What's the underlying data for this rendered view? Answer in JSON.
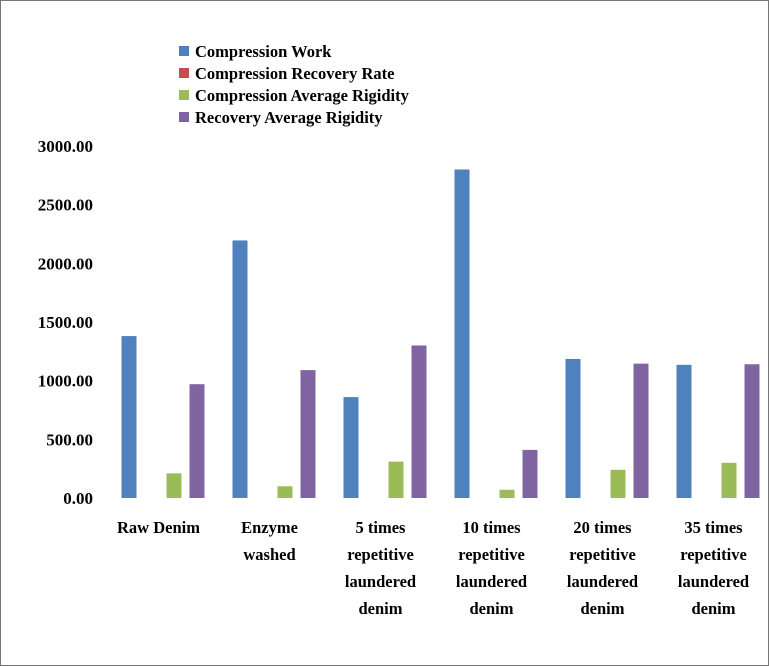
{
  "chart_data": {
    "type": "bar",
    "title": "",
    "xlabel": "",
    "ylabel": "",
    "ylim": [
      0,
      3000
    ],
    "yticks": [
      0,
      500,
      1000,
      1500,
      2000,
      2500,
      3000
    ],
    "ytick_labels": [
      "0.00",
      "500.00",
      "1000.00",
      "1500.00",
      "2000.00",
      "2500.00",
      "3000.00"
    ],
    "grid": false,
    "legend_position": "top-left",
    "categories": [
      [
        "Raw Denim"
      ],
      [
        "Enzyme",
        "washed"
      ],
      [
        "5 times",
        "repetitive",
        "laundered",
        "denim"
      ],
      [
        "10 times",
        "repetitive",
        "laundered",
        "denim"
      ],
      [
        "20 times",
        "repetitive",
        "laundered",
        "denim"
      ],
      [
        "35 times",
        "repetitive",
        "laundered",
        "denim"
      ]
    ],
    "series": [
      {
        "name": "Compression Work",
        "color": "#4F81BD",
        "values": [
          1380,
          2195,
          860,
          2800,
          1185,
          1135
        ]
      },
      {
        "name": "Compression Recovery Rate",
        "color": "#C0504D",
        "values": [
          0,
          0,
          0,
          0,
          0,
          0
        ]
      },
      {
        "name": "Compression Average Rigidity",
        "color": "#9BBB59",
        "values": [
          210,
          100,
          310,
          70,
          240,
          300
        ]
      },
      {
        "name": "Recovery Average Rigidity",
        "color": "#8064A2",
        "values": [
          970,
          1090,
          1300,
          410,
          1145,
          1140
        ]
      }
    ]
  }
}
